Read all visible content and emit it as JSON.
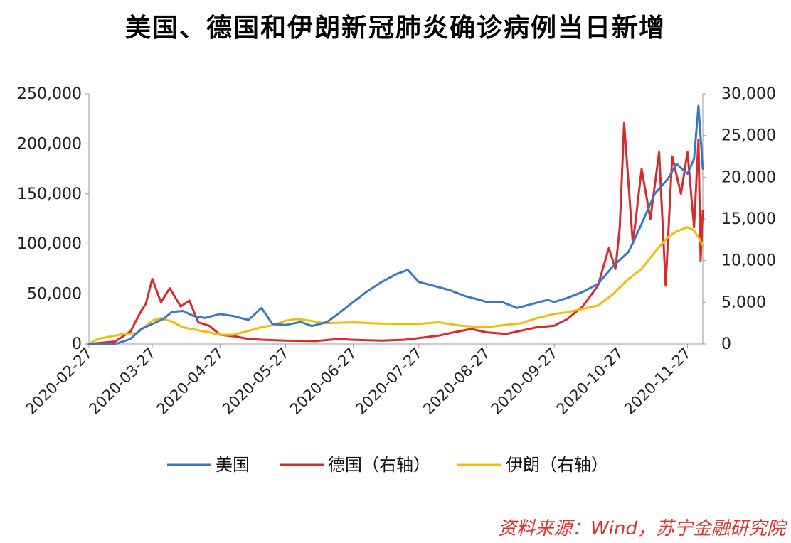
{
  "chart_data": {
    "type": "line",
    "title": "美国、德国和伊朗新冠肺炎确诊病例当日新增",
    "source": "资料来源：Wind，苏宁金融研究院",
    "x_ticks": [
      "2020-02-27",
      "2020-03-27",
      "2020-04-27",
      "2020-05-27",
      "2020-06-27",
      "2020-07-27",
      "2020-08-27",
      "2020-09-27",
      "2020-10-27",
      "2020-11-27"
    ],
    "x_range": [
      "2020-02-27",
      "2020-12-04"
    ],
    "left_axis": {
      "ylim": [
        0,
        250000
      ],
      "ticks": [
        "0",
        "50,000",
        "100,000",
        "150,000",
        "200,000",
        "250,000"
      ]
    },
    "right_axis": {
      "ylim": [
        0,
        30000
      ],
      "ticks": [
        "0",
        "5,000",
        "10,000",
        "15,000",
        "20,000",
        "25,000",
        "30,000"
      ]
    },
    "legend_position": "bottom",
    "series": [
      {
        "name": "美国",
        "axis": "left",
        "color": "#3a78c4",
        "points": [
          [
            "2020-02-27",
            0
          ],
          [
            "2020-03-10",
            0
          ],
          [
            "2020-03-17",
            5000
          ],
          [
            "2020-03-22",
            15000
          ],
          [
            "2020-03-27",
            20000
          ],
          [
            "2020-04-01",
            25000
          ],
          [
            "2020-04-05",
            32000
          ],
          [
            "2020-04-10",
            33000
          ],
          [
            "2020-04-15",
            28000
          ],
          [
            "2020-04-20",
            26000
          ],
          [
            "2020-04-27",
            30000
          ],
          [
            "2020-05-03",
            28000
          ],
          [
            "2020-05-10",
            24000
          ],
          [
            "2020-05-16",
            36000
          ],
          [
            "2020-05-21",
            20000
          ],
          [
            "2020-05-27",
            19000
          ],
          [
            "2020-06-03",
            22000
          ],
          [
            "2020-06-08",
            18000
          ],
          [
            "2020-06-15",
            22000
          ],
          [
            "2020-06-20",
            30000
          ],
          [
            "2020-06-27",
            42000
          ],
          [
            "2020-07-03",
            52000
          ],
          [
            "2020-07-10",
            62000
          ],
          [
            "2020-07-17",
            70000
          ],
          [
            "2020-07-22",
            74000
          ],
          [
            "2020-07-27",
            62000
          ],
          [
            "2020-08-03",
            58000
          ],
          [
            "2020-08-10",
            54000
          ],
          [
            "2020-08-17",
            48000
          ],
          [
            "2020-08-24",
            44000
          ],
          [
            "2020-08-27",
            42000
          ],
          [
            "2020-09-03",
            42000
          ],
          [
            "2020-09-10",
            36000
          ],
          [
            "2020-09-17",
            40000
          ],
          [
            "2020-09-24",
            44000
          ],
          [
            "2020-09-27",
            42000
          ],
          [
            "2020-10-03",
            46000
          ],
          [
            "2020-10-10",
            52000
          ],
          [
            "2020-10-17",
            60000
          ],
          [
            "2020-10-24",
            78000
          ],
          [
            "2020-10-31",
            92000
          ],
          [
            "2020-11-06",
            120000
          ],
          [
            "2020-11-12",
            150000
          ],
          [
            "2020-11-18",
            165000
          ],
          [
            "2020-11-22",
            180000
          ],
          [
            "2020-11-27",
            170000
          ],
          [
            "2020-11-30",
            185000
          ],
          [
            "2020-12-02",
            238000
          ],
          [
            "2020-12-04",
            175000
          ]
        ]
      },
      {
        "name": "德国（右轴）",
        "axis": "right",
        "color": "#d92b2b",
        "points": [
          [
            "2020-02-27",
            0
          ],
          [
            "2020-03-10",
            300
          ],
          [
            "2020-03-17",
            1500
          ],
          [
            "2020-03-22",
            4000
          ],
          [
            "2020-03-24",
            4800
          ],
          [
            "2020-03-27",
            7800
          ],
          [
            "2020-03-31",
            5000
          ],
          [
            "2020-04-04",
            6700
          ],
          [
            "2020-04-09",
            4500
          ],
          [
            "2020-04-13",
            5200
          ],
          [
            "2020-04-17",
            2600
          ],
          [
            "2020-04-22",
            2200
          ],
          [
            "2020-04-27",
            1100
          ],
          [
            "2020-05-04",
            900
          ],
          [
            "2020-05-10",
            600
          ],
          [
            "2020-05-17",
            500
          ],
          [
            "2020-05-27",
            400
          ],
          [
            "2020-06-10",
            350
          ],
          [
            "2020-06-20",
            600
          ],
          [
            "2020-06-27",
            500
          ],
          [
            "2020-07-10",
            400
          ],
          [
            "2020-07-20",
            500
          ],
          [
            "2020-07-27",
            700
          ],
          [
            "2020-08-05",
            1000
          ],
          [
            "2020-08-12",
            1400
          ],
          [
            "2020-08-20",
            1800
          ],
          [
            "2020-08-27",
            1400
          ],
          [
            "2020-09-05",
            1200
          ],
          [
            "2020-09-12",
            1600
          ],
          [
            "2020-09-19",
            2000
          ],
          [
            "2020-09-27",
            2200
          ],
          [
            "2020-10-03",
            3000
          ],
          [
            "2020-10-10",
            4500
          ],
          [
            "2020-10-17",
            7000
          ],
          [
            "2020-10-22",
            11500
          ],
          [
            "2020-10-25",
            9000
          ],
          [
            "2020-10-27",
            14000
          ],
          [
            "2020-10-29",
            26500
          ],
          [
            "2020-11-02",
            12000
          ],
          [
            "2020-11-06",
            21000
          ],
          [
            "2020-11-10",
            15000
          ],
          [
            "2020-11-14",
            23000
          ],
          [
            "2020-11-17",
            7000
          ],
          [
            "2020-11-20",
            22500
          ],
          [
            "2020-11-24",
            18000
          ],
          [
            "2020-11-27",
            23000
          ],
          [
            "2020-11-30",
            14000
          ],
          [
            "2020-12-02",
            24500
          ],
          [
            "2020-12-03",
            10000
          ],
          [
            "2020-12-04",
            16000
          ]
        ]
      },
      {
        "name": "伊朗（右轴）",
        "axis": "right",
        "color": "#f2bc0a",
        "points": [
          [
            "2020-02-27",
            0
          ],
          [
            "2020-03-02",
            600
          ],
          [
            "2020-03-08",
            900
          ],
          [
            "2020-03-14",
            1200
          ],
          [
            "2020-03-20",
            1300
          ],
          [
            "2020-03-27",
            2800
          ],
          [
            "2020-03-31",
            3100
          ],
          [
            "2020-04-05",
            2700
          ],
          [
            "2020-04-10",
            2000
          ],
          [
            "2020-04-16",
            1700
          ],
          [
            "2020-04-22",
            1400
          ],
          [
            "2020-04-27",
            1100
          ],
          [
            "2020-05-03",
            1100
          ],
          [
            "2020-05-09",
            1500
          ],
          [
            "2020-05-16",
            2000
          ],
          [
            "2020-05-22",
            2300
          ],
          [
            "2020-05-27",
            2800
          ],
          [
            "2020-06-01",
            3000
          ],
          [
            "2020-06-07",
            2800
          ],
          [
            "2020-06-14",
            2500
          ],
          [
            "2020-06-27",
            2600
          ],
          [
            "2020-07-05",
            2500
          ],
          [
            "2020-07-15",
            2400
          ],
          [
            "2020-07-27",
            2400
          ],
          [
            "2020-08-05",
            2600
          ],
          [
            "2020-08-15",
            2200
          ],
          [
            "2020-08-27",
            2000
          ],
          [
            "2020-09-05",
            2300
          ],
          [
            "2020-09-12",
            2500
          ],
          [
            "2020-09-19",
            3100
          ],
          [
            "2020-09-27",
            3600
          ],
          [
            "2020-10-03",
            3800
          ],
          [
            "2020-10-10",
            4200
          ],
          [
            "2020-10-17",
            4600
          ],
          [
            "2020-10-24",
            6000
          ],
          [
            "2020-10-31",
            7800
          ],
          [
            "2020-11-06",
            9000
          ],
          [
            "2020-11-12",
            11000
          ],
          [
            "2020-11-18",
            12800
          ],
          [
            "2020-11-22",
            13500
          ],
          [
            "2020-11-27",
            14000
          ],
          [
            "2020-11-30",
            13600
          ],
          [
            "2020-12-02",
            12800
          ],
          [
            "2020-12-04",
            11800
          ]
        ]
      }
    ]
  }
}
